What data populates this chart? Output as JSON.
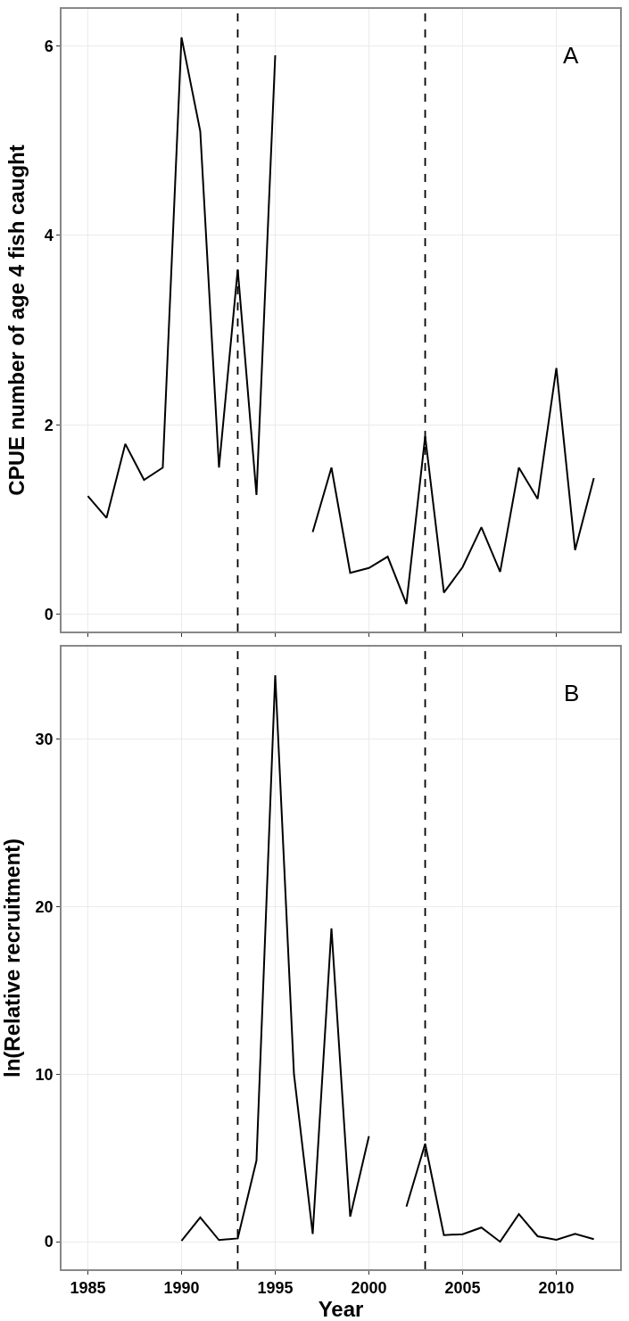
{
  "chart_data": [
    {
      "type": "line",
      "ylabel": "CPUE number of age 4 fish caught",
      "annotations": [
        "A"
      ],
      "x": [
        1985,
        1986,
        1987,
        1988,
        1989,
        1990,
        1991,
        1992,
        1993,
        1994,
        1995,
        1996,
        1997,
        1998,
        1999,
        2000,
        2001,
        2002,
        2003,
        2004,
        2005,
        2006,
        2007,
        2008,
        2009,
        2010,
        2011,
        2012
      ],
      "series": [
        {
          "color": "#000000",
          "values": [
            1.25,
            1.02,
            1.8,
            1.42,
            1.55,
            6.09,
            5.1,
            1.55,
            3.64,
            1.26,
            5.9,
            null,
            0.87,
            1.55,
            0.44,
            0.49,
            0.61,
            0.11,
            1.88,
            0.23,
            0.5,
            0.92,
            0.45,
            1.55,
            1.22,
            2.6,
            0.68,
            1.44
          ]
        }
      ],
      "xlim": [
        1983.6,
        2013.4
      ],
      "xticks": [
        1985,
        1990,
        1995,
        2000,
        2005,
        2010
      ],
      "ylim": [
        -0.18,
        6.39
      ],
      "yticks": [
        0,
        2,
        4,
        6
      ],
      "ref_lines": [
        {
          "axis": "x",
          "value": 1993,
          "color": "#000000",
          "line_style": "dashed"
        },
        {
          "axis": "x",
          "value": 2003,
          "color": "#000000",
          "line_style": "dashed"
        }
      ],
      "grid": true,
      "marker": "none",
      "line_style": "solid",
      "tick_labels": "y"
    },
    {
      "type": "line",
      "xlabel": "Year",
      "ylabel": "ln(Relative recruitment)",
      "annotations": [
        "B"
      ],
      "x": [
        1990,
        1991,
        1992,
        1993,
        1994,
        1995,
        1996,
        1997,
        1998,
        1999,
        2000,
        2001,
        2002,
        2003,
        2004,
        2005,
        2006,
        2007,
        2008,
        2009,
        2010,
        2011,
        2012
      ],
      "series": [
        {
          "color": "#000000",
          "values": [
            0.05,
            1.45,
            0.1,
            0.2,
            4.85,
            33.8,
            10.0,
            0.47,
            18.7,
            1.5,
            6.3,
            null,
            2.1,
            5.85,
            0.4,
            0.45,
            0.85,
            0.0,
            1.65,
            0.33,
            0.12,
            0.47,
            0.16
          ]
        }
      ],
      "xlim": [
        1983.6,
        2013.4
      ],
      "xticks": [
        1985,
        1990,
        1995,
        2000,
        2005,
        2010
      ],
      "ylim": [
        -1.64,
        35.5
      ],
      "yticks": [
        0,
        10,
        20,
        30
      ],
      "ref_lines": [
        {
          "axis": "x",
          "value": 1993,
          "color": "#000000",
          "line_style": "dashed"
        },
        {
          "axis": "x",
          "value": 2003,
          "color": "#000000",
          "line_style": "dashed"
        }
      ],
      "grid": true,
      "marker": "none",
      "line_style": "solid"
    }
  ]
}
